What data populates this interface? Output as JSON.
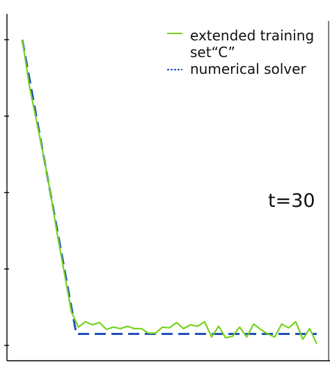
{
  "chart_data": {
    "type": "line",
    "title": "",
    "xlabel": "",
    "ylabel": "",
    "grid": false,
    "legend_position": "top-right",
    "annotation": "t=30",
    "xlim": [
      0,
      42
    ],
    "ylim": [
      0,
      4.1
    ],
    "y_ticks": [
      0,
      1,
      2,
      3,
      4
    ],
    "series": [
      {
        "name": "extended training set“C”",
        "style": "solid",
        "color": "#76d21f",
        "x": [
          0,
          1,
          2,
          3,
          4,
          5,
          6,
          7,
          8,
          9,
          10,
          11,
          12,
          13,
          14,
          15,
          16,
          17,
          18,
          19,
          20,
          21,
          22,
          23,
          24,
          25,
          26,
          27,
          28,
          29,
          30,
          31,
          32,
          33,
          34,
          35,
          36,
          37,
          38,
          39,
          40,
          41,
          42
        ],
        "y": [
          4.0,
          3.4,
          2.95,
          2.5,
          2.0,
          1.45,
          0.95,
          0.44,
          0.24,
          0.31,
          0.27,
          0.3,
          0.21,
          0.24,
          0.22,
          0.25,
          0.22,
          0.22,
          0.16,
          0.16,
          0.24,
          0.23,
          0.3,
          0.22,
          0.27,
          0.25,
          0.31,
          0.11,
          0.25,
          0.1,
          0.12,
          0.24,
          0.11,
          0.28,
          0.21,
          0.15,
          0.11,
          0.28,
          0.23,
          0.31,
          0.08,
          0.22,
          0.02
        ]
      },
      {
        "name": "numerical solver",
        "style": "dashed",
        "color": "#1f4fbf",
        "x": [
          0,
          7.7,
          42
        ],
        "y": [
          4.0,
          0.15,
          0.15
        ]
      }
    ]
  }
}
